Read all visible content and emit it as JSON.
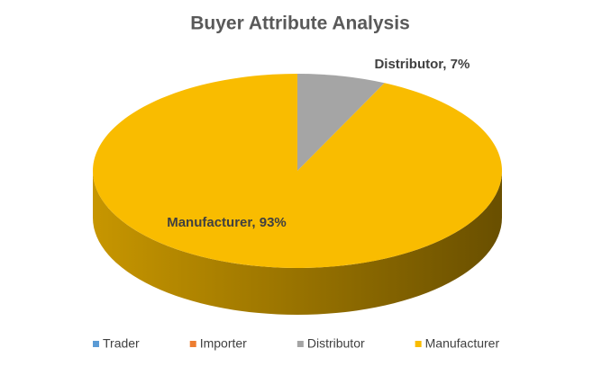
{
  "chart_data": {
    "type": "pie",
    "title": "Buyer Attribute Analysis",
    "categories": [
      "Trader",
      "Importer",
      "Distributor",
      "Manufacturer"
    ],
    "values": [
      0,
      0,
      7,
      93
    ],
    "value_labels": [
      null,
      null,
      "Distributor, 7%",
      "Manufacturer, 93%"
    ],
    "colors": [
      "#5b9bd5",
      "#ed7d31",
      "#a5a5a5",
      "#f9bc00"
    ],
    "legend": "bottom"
  }
}
